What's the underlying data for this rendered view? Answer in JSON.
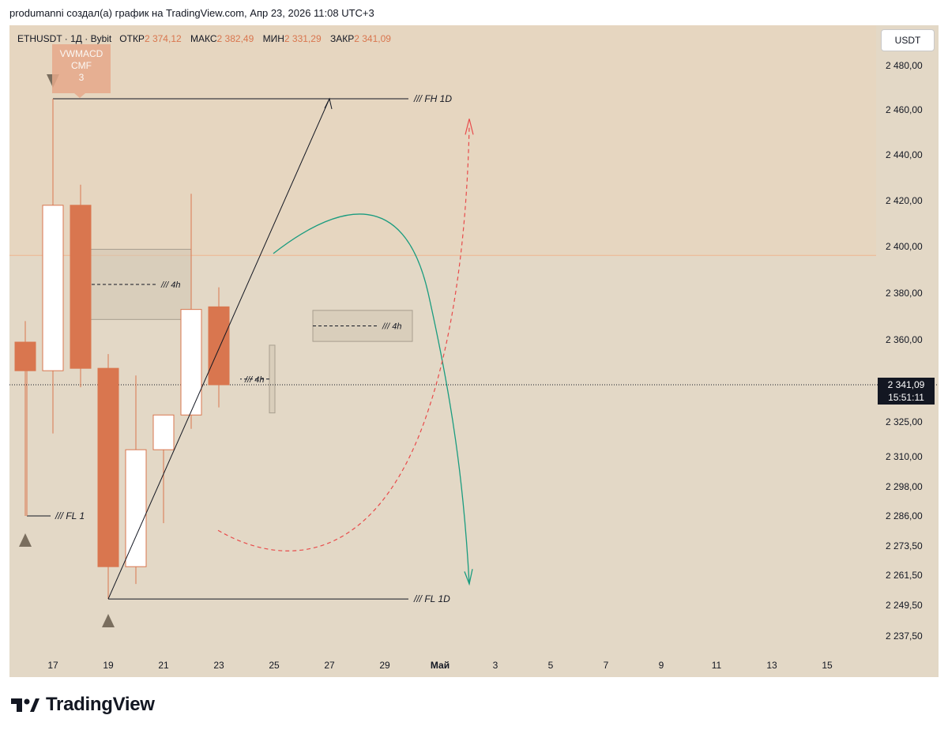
{
  "header": {
    "attribution": "produmanni создал(а) график на TradingView.com, Апр 23, 2026 11:08 UTC+3"
  },
  "legend": {
    "symbol": "ETHUSDT · 1Д · Bybit",
    "open_label": "ОТКР",
    "open_value": "2 374,12",
    "high_label": "МАКС",
    "high_value": "2 382,49",
    "low_label": "МИН",
    "low_value": "2 331,29",
    "close_label": "ЗАКР",
    "close_value": "2 341,09"
  },
  "currency_button": "USDT",
  "indicator_label": {
    "line1": "VWMACD",
    "line2": "CMF",
    "line3": "3"
  },
  "last_price": {
    "price": "2 341,09",
    "countdown": "15:51:11"
  },
  "footer": {
    "brand": "TradingView"
  },
  "colors": {
    "bearish": "#d9764f",
    "bullish": "#ffffff",
    "background": "#e3d8c6",
    "upper_zone": "#e6d6c0",
    "teal_curve": "#1a9c7f",
    "red_dashed": "#e84b4b"
  },
  "chart_data": {
    "type": "candlestick",
    "y_axis_labels": [
      "2 480,00",
      "2 460,00",
      "2 440,00",
      "2 420,00",
      "2 400,00",
      "2 380,00",
      "2 360,00",
      "2 325,00",
      "2 310,00",
      "2 298,00",
      "2 286,00",
      "2 273,50",
      "2 261,50",
      "2 249,50",
      "2 237,50"
    ],
    "x_axis_labels": [
      "17",
      "19",
      "21",
      "23",
      "25",
      "27",
      "29",
      "Май",
      "3",
      "5",
      "7",
      "9",
      "11",
      "13",
      "15"
    ],
    "candles": [
      {
        "date": "2026-04-16",
        "open": 2359,
        "high": 2368,
        "low": 2286,
        "close": 2347
      },
      {
        "date": "2026-04-17",
        "open": 2347,
        "high": 2465,
        "low": 2320,
        "close": 2418
      },
      {
        "date": "2026-04-18",
        "open": 2418,
        "high": 2427,
        "low": 2340,
        "close": 2348
      },
      {
        "date": "2026-04-19",
        "open": 2348,
        "high": 2354,
        "low": 2252,
        "close": 2265
      },
      {
        "date": "2026-04-20",
        "open": 2265,
        "high": 2345,
        "low": 2258,
        "close": 2313
      },
      {
        "date": "2026-04-21",
        "open": 2313,
        "high": 2328,
        "low": 2283,
        "close": 2328
      },
      {
        "date": "2026-04-22",
        "open": 2328,
        "high": 2423,
        "low": 2322,
        "close": 2373
      },
      {
        "date": "2026-04-23",
        "open": 2374.12,
        "high": 2382.49,
        "low": 2331.29,
        "close": 2341.09
      }
    ],
    "levels": [
      {
        "label": "/// FH 1D",
        "price": 2465
      },
      {
        "label": "/// FL 1D",
        "price": 2252
      },
      {
        "label": "/// FL 1",
        "price": 2286
      }
    ],
    "zones": [
      {
        "label": "/// 4h",
        "top": 2398.8,
        "bottom": 2368.7
      },
      {
        "label": "/// 4h",
        "top": 2372.6,
        "bottom": 2359.3
      },
      {
        "label": "/// 4h",
        "top": 2357.7,
        "bottom": 2328.9
      }
    ],
    "highlight_zone": {
      "top": 2488,
      "bottom": 2396.2
    },
    "last_close": 2341.09
  }
}
